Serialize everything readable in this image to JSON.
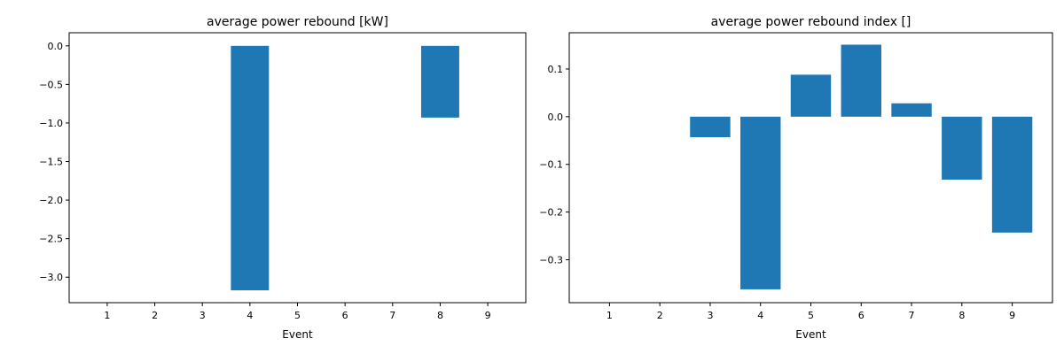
{
  "chart_data": [
    {
      "type": "bar",
      "title": "average power rebound [kW]",
      "xlabel": "Event",
      "ylabel": "",
      "categories": [
        "1",
        "2",
        "3",
        "4",
        "5",
        "6",
        "7",
        "8",
        "9"
      ],
      "values": [
        0,
        0,
        0,
        -3.17,
        0,
        0,
        0,
        -0.93,
        0
      ],
      "ylim": [
        -3.33,
        0.17
      ],
      "yticks": [
        0.0,
        -0.5,
        -1.0,
        -1.5,
        -2.0,
        -2.5,
        -3.0
      ],
      "ytick_labels": [
        "0.0",
        "−0.5",
        "−1.0",
        "−1.5",
        "−2.0",
        "−2.5",
        "−3.0"
      ],
      "grid": false,
      "color": "#1f77b4"
    },
    {
      "type": "bar",
      "title": "average power rebound index []",
      "xlabel": "Event",
      "ylabel": "",
      "categories": [
        "1",
        "2",
        "3",
        "4",
        "5",
        "6",
        "7",
        "8",
        "9"
      ],
      "values": [
        0,
        0,
        -0.043,
        -0.362,
        0.088,
        0.151,
        0.028,
        -0.132,
        -0.243
      ],
      "ylim": [
        -0.39,
        0.176
      ],
      "yticks": [
        0.1,
        0.0,
        -0.1,
        -0.2,
        -0.3
      ],
      "ytick_labels": [
        "0.1",
        "0.0",
        "−0.1",
        "−0.2",
        "−0.3"
      ],
      "grid": false,
      "color": "#1f77b4"
    }
  ]
}
